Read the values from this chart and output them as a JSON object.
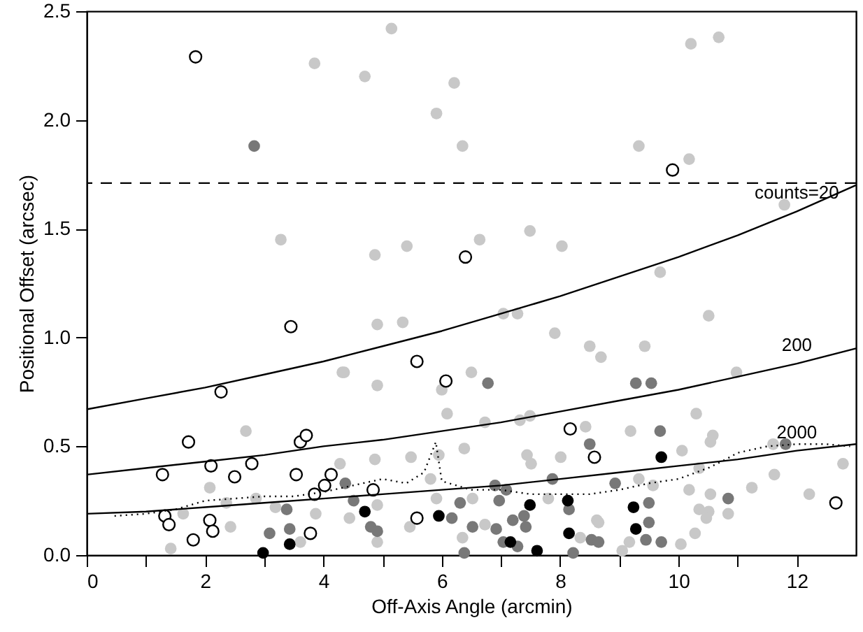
{
  "chart_data": {
    "type": "scatter",
    "xlabel": "Off-Axis Angle (arcmin)",
    "ylabel": "Positional Offset (arcsec)",
    "xlim": [
      0,
      13
    ],
    "ylim": [
      0,
      2.5
    ],
    "xticks": [
      0,
      {
        "value": 1,
        "label": null
      },
      2,
      {
        "value": 3,
        "label": null
      },
      4,
      {
        "value": 5,
        "label": null
      },
      6,
      {
        "value": 7,
        "label": null
      },
      8,
      {
        "value": 9,
        "label": null
      },
      10,
      {
        "value": 11,
        "label": null
      },
      12
    ],
    "yticks": [
      {
        "value": 0,
        "label": "0.0"
      },
      0.5,
      {
        "value": 1,
        "label": "1.0"
      },
      1.5,
      {
        "value": 2,
        "label": "2.0"
      },
      2.5
    ],
    "grid": false,
    "marker": "circle",
    "series": [
      {
        "color": "#c8c8c8",
        "x": [
          3.85,
          3.28,
          5.15,
          4.7,
          6.21,
          5.91,
          6.35,
          4.87,
          5.41,
          6.64,
          7.49,
          8.03,
          10.21,
          10.68,
          9.33,
          10.18,
          11.79,
          9.69,
          2.69,
          4.32,
          2.08,
          1.63,
          1.42,
          2.36,
          2.43,
          2.86,
          3.19,
          3.61,
          3.87,
          4.28,
          4.91,
          5.34,
          4.35,
          4.91,
          6.0,
          6.5,
          6.09,
          7.04,
          7.28,
          7.91,
          8.5,
          6.73,
          7.32,
          7.49,
          8.43,
          6.38,
          5.48,
          4.87,
          5.95,
          7.44,
          7.51,
          8.01,
          5.81,
          5.91,
          6.52,
          4.91,
          4.44,
          5.46,
          6.35,
          4.91,
          6.73,
          7.8,
          8.34,
          8.62,
          10.51,
          9.43,
          8.69,
          10.98,
          10.3,
          9.19,
          10.58,
          10.54,
          10.06,
          11.6,
          12.78,
          11.62,
          10.35,
          9.33,
          9.57,
          10.18,
          11.24,
          12.21,
          10.54,
          10.35,
          10.51,
          10.47,
          10.84,
          9.17,
          9.05,
          10.04,
          10.28,
          8.65
        ],
        "values": [
          2.26,
          1.45,
          2.42,
          2.2,
          2.17,
          2.03,
          1.88,
          1.38,
          1.42,
          1.45,
          1.49,
          1.42,
          2.35,
          2.38,
          1.88,
          1.82,
          1.61,
          1.3,
          0.57,
          0.84,
          0.31,
          0.19,
          0.03,
          0.24,
          0.13,
          0.26,
          0.22,
          0.06,
          0.19,
          0.42,
          1.06,
          1.07,
          0.84,
          0.78,
          0.76,
          0.84,
          0.65,
          1.11,
          1.11,
          1.02,
          0.96,
          0.61,
          0.62,
          0.64,
          0.59,
          0.49,
          0.45,
          0.44,
          0.46,
          0.46,
          0.42,
          0.45,
          0.35,
          0.26,
          0.26,
          0.23,
          0.17,
          0.13,
          0.08,
          0.06,
          0.14,
          0.26,
          0.08,
          0.16,
          1.1,
          0.96,
          0.91,
          0.84,
          0.65,
          0.57,
          0.55,
          0.52,
          0.48,
          0.51,
          0.42,
          0.37,
          0.4,
          0.35,
          0.32,
          0.3,
          0.31,
          0.28,
          0.28,
          0.21,
          0.2,
          0.17,
          0.19,
          0.06,
          0.02,
          0.05,
          0.1,
          0.15
        ]
      },
      {
        "color": "#787878",
        "x": [
          2.83,
          3.38,
          3.43,
          3.09,
          6.78,
          4.37,
          4.51,
          4.8,
          4.91,
          6.17,
          6.31,
          6.52,
          6.38,
          6.9,
          7.09,
          6.97,
          6.92,
          7.04,
          7.2,
          7.39,
          7.42,
          7.28,
          7.87,
          8.15,
          8.22,
          8.5,
          8.53,
          9.28,
          9.54,
          9.69,
          8.93,
          9.5,
          9.5,
          9.45,
          9.71,
          10.84,
          11.81,
          8.65
        ],
        "values": [
          1.88,
          0.21,
          0.12,
          0.1,
          0.79,
          0.33,
          0.25,
          0.13,
          0.11,
          0.17,
          0.24,
          0.13,
          0.01,
          0.32,
          0.3,
          0.25,
          0.12,
          0.06,
          0.16,
          0.18,
          0.13,
          0.04,
          0.35,
          0.21,
          0.01,
          0.51,
          0.07,
          0.79,
          0.79,
          0.57,
          0.33,
          0.24,
          0.15,
          0.07,
          0.06,
          0.26,
          0.51,
          0.06
        ]
      },
      {
        "color": "#000000",
        "x": [
          2.98,
          3.43,
          4.7,
          5.95,
          7.16,
          7.61,
          7.49,
          8.13,
          8.15,
          9.71,
          9.24,
          9.28
        ],
        "values": [
          0.01,
          0.05,
          0.2,
          0.18,
          0.06,
          0.02,
          0.23,
          0.25,
          0.1,
          0.45,
          0.22,
          0.12
        ]
      },
      {
        "color": "#ffffff",
        "x": [
          1.84,
          9.9,
          6.4,
          3.45,
          2.27,
          1.72,
          1.28,
          2.1,
          2.5,
          2.79,
          3.61,
          3.71,
          3.54,
          3.85,
          4.02,
          4.13,
          1.32,
          1.39,
          2.08,
          2.13,
          1.8,
          3.78,
          5.58,
          6.07,
          8.17,
          8.58,
          4.84,
          5.58,
          12.66
        ],
        "values": [
          2.29,
          1.77,
          1.37,
          1.05,
          0.75,
          0.52,
          0.37,
          0.41,
          0.36,
          0.42,
          0.52,
          0.55,
          0.37,
          0.28,
          0.32,
          0.37,
          0.18,
          0.14,
          0.16,
          0.11,
          0.07,
          0.1,
          0.89,
          0.8,
          0.58,
          0.45,
          0.3,
          0.17,
          0.24
        ]
      },
      {
        "type": "line",
        "color": "#000000",
        "line_style": "solid",
        "marker": "none",
        "x": [
          0,
          1,
          2,
          3,
          4,
          5,
          6,
          7,
          8,
          9,
          10,
          11,
          12,
          13
        ],
        "values": [
          0.67,
          0.72,
          0.77,
          0.83,
          0.89,
          0.96,
          1.03,
          1.11,
          1.19,
          1.28,
          1.37,
          1.47,
          1.58,
          1.7
        ]
      },
      {
        "type": "line",
        "color": "#000000",
        "line_style": "solid",
        "marker": "none",
        "x": [
          0,
          1,
          2,
          3,
          4,
          5,
          6,
          7,
          8,
          9,
          10,
          11,
          12,
          13
        ],
        "values": [
          0.37,
          0.4,
          0.43,
          0.46,
          0.5,
          0.53,
          0.57,
          0.61,
          0.66,
          0.71,
          0.76,
          0.82,
          0.88,
          0.95
        ]
      },
      {
        "type": "line",
        "color": "#000000",
        "line_style": "solid",
        "marker": "none",
        "x": [
          0,
          1,
          2,
          3,
          4,
          5,
          6,
          7,
          8,
          9,
          10,
          11,
          12,
          13
        ],
        "values": [
          0.19,
          0.2,
          0.22,
          0.24,
          0.26,
          0.28,
          0.3,
          0.32,
          0.35,
          0.38,
          0.41,
          0.44,
          0.48,
          0.51
        ]
      },
      {
        "type": "line",
        "color": "#000000",
        "line_style": "dotted",
        "marker": "none",
        "x": [
          0.47,
          1,
          1.5,
          2,
          2.5,
          3,
          3.5,
          4,
          4.5,
          5,
          5.4,
          5.7,
          5.9,
          6.0,
          6.5,
          7,
          7.5,
          8,
          8.5,
          9,
          9.5,
          10,
          10.3,
          10.5,
          10.8,
          11,
          11.5,
          12,
          12.5,
          12.9
        ],
        "values": [
          0.18,
          0.19,
          0.21,
          0.25,
          0.26,
          0.27,
          0.27,
          0.29,
          0.32,
          0.35,
          0.33,
          0.38,
          0.52,
          0.34,
          0.3,
          0.3,
          0.28,
          0.28,
          0.28,
          0.3,
          0.33,
          0.35,
          0.38,
          0.4,
          0.44,
          0.47,
          0.5,
          0.51,
          0.51,
          0.5
        ]
      }
    ],
    "ref_lines": [
      {
        "axis": "y",
        "value": 1.71,
        "label": null,
        "color": "#000000",
        "line_style": "dashed"
      }
    ],
    "annotations": [
      "counts=20",
      "200",
      "2000"
    ]
  }
}
